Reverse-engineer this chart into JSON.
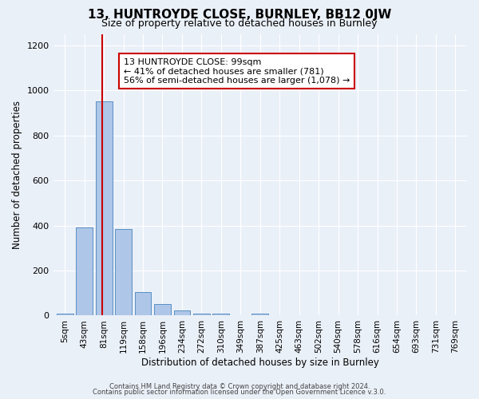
{
  "title": "13, HUNTROYDE CLOSE, BURNLEY, BB12 0JW",
  "subtitle": "Size of property relative to detached houses in Burnley",
  "xlabel": "Distribution of detached houses by size in Burnley",
  "ylabel": "Number of detached properties",
  "bin_labels": [
    "5sqm",
    "43sqm",
    "81sqm",
    "119sqm",
    "158sqm",
    "196sqm",
    "234sqm",
    "272sqm",
    "310sqm",
    "349sqm",
    "387sqm",
    "425sqm",
    "463sqm",
    "502sqm",
    "540sqm",
    "578sqm",
    "616sqm",
    "654sqm",
    "693sqm",
    "731sqm",
    "769sqm"
  ],
  "bar_values": [
    10,
    390,
    950,
    385,
    105,
    50,
    22,
    10,
    8,
    0,
    8,
    0,
    0,
    0,
    0,
    0,
    0,
    0,
    0,
    0,
    0
  ],
  "bar_color": "#aec6e8",
  "bar_edge_color": "#5a8fc3",
  "vline_color": "#cc0000",
  "ylim": [
    0,
    1250
  ],
  "yticks": [
    0,
    200,
    400,
    600,
    800,
    1000,
    1200
  ],
  "annotation_line1": "13 HUNTROYDE CLOSE: 99sqm",
  "annotation_line2": "← 41% of detached houses are smaller (781)",
  "annotation_line3": "56% of semi-detached houses are larger (1,078) →",
  "annotation_box_color": "#ffffff",
  "annotation_box_edge": "#cc0000",
  "footer_line1": "Contains HM Land Registry data © Crown copyright and database right 2024.",
  "footer_line2": "Contains public sector information licensed under the Open Government Licence v.3.0.",
  "bg_color": "#eaf0f8",
  "plot_bg_color": "#eaf0f8"
}
